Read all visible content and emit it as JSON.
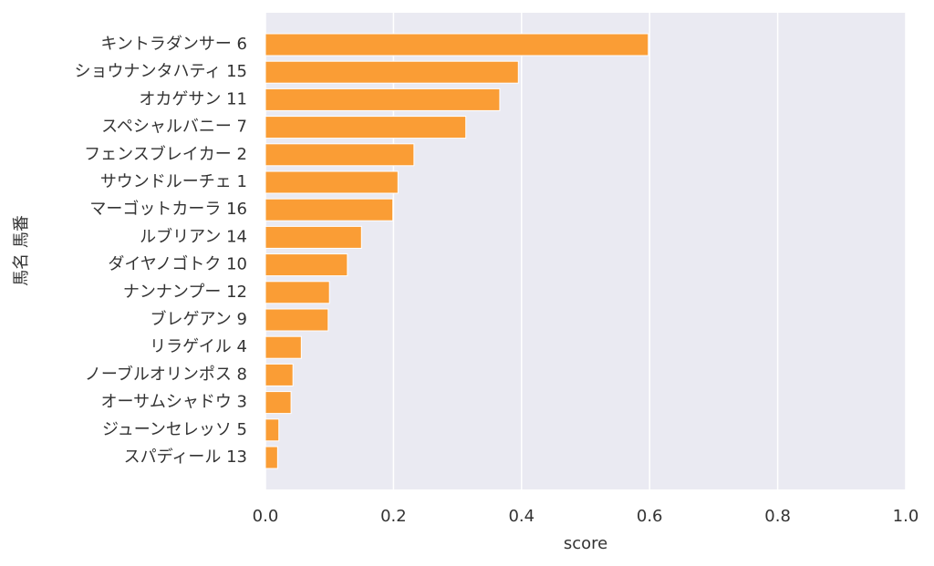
{
  "chart_data": {
    "type": "barh",
    "xlabel": "score",
    "ylabel": "馬名 馬番",
    "categories": [
      "キントラダンサー 6",
      "ショウナンタハティ 15",
      "オカゲサン 11",
      "スペシャルバニー 7",
      "フェンスブレイカー 2",
      "サウンドルーチェ 1",
      "マーゴットカーラ 16",
      "ルブリアン 14",
      "ダイヤノゴトク 10",
      "ナンナンプー 12",
      "ブレゲアン 9",
      "リラゲイル 4",
      "ノーブルオリンポス 8",
      "オーサムシャドウ 3",
      "ジューンセレッソ 5",
      "スパディール 13"
    ],
    "values": [
      0.598,
      0.395,
      0.366,
      0.313,
      0.232,
      0.207,
      0.199,
      0.15,
      0.128,
      0.1,
      0.098,
      0.056,
      0.043,
      0.04,
      0.021,
      0.019
    ],
    "color": "#fa9d35",
    "xlim": [
      0,
      1
    ],
    "xticks": [
      {
        "value": 0,
        "label": "0.0"
      },
      {
        "value": 0.2,
        "label": "0.2"
      },
      {
        "value": 0.4,
        "label": "0.4"
      },
      {
        "value": 0.6,
        "label": "0.6"
      },
      {
        "value": 0.8,
        "label": "0.8"
      },
      {
        "value": 1,
        "label": "1.0"
      }
    ],
    "grid": true
  }
}
